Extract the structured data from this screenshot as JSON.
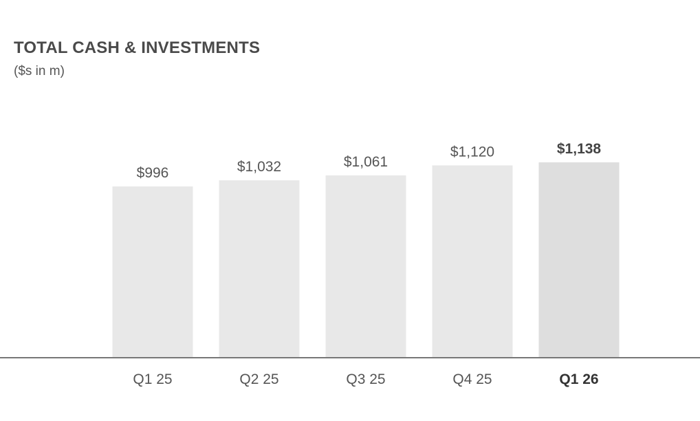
{
  "colors": {
    "bar": "#e8e8e8",
    "bar_highlight": "#dedede",
    "axis": "#777777",
    "text": "#555555"
  },
  "chart_data": {
    "type": "bar",
    "title": "TOTAL CASH & INVESTMENTS",
    "subtitle": "($s in m)",
    "categories": [
      "Q1 25",
      "Q2 25",
      "Q3 25",
      "Q4 25",
      "Q1 26"
    ],
    "values": [
      996,
      1032,
      1061,
      1120,
      1138
    ],
    "value_labels": [
      "$996",
      "$1,032",
      "$1,061",
      "$1,120",
      "$1,138"
    ],
    "highlight_index": 4,
    "xlabel": "",
    "ylabel": "",
    "grid": false,
    "legend": "none"
  }
}
